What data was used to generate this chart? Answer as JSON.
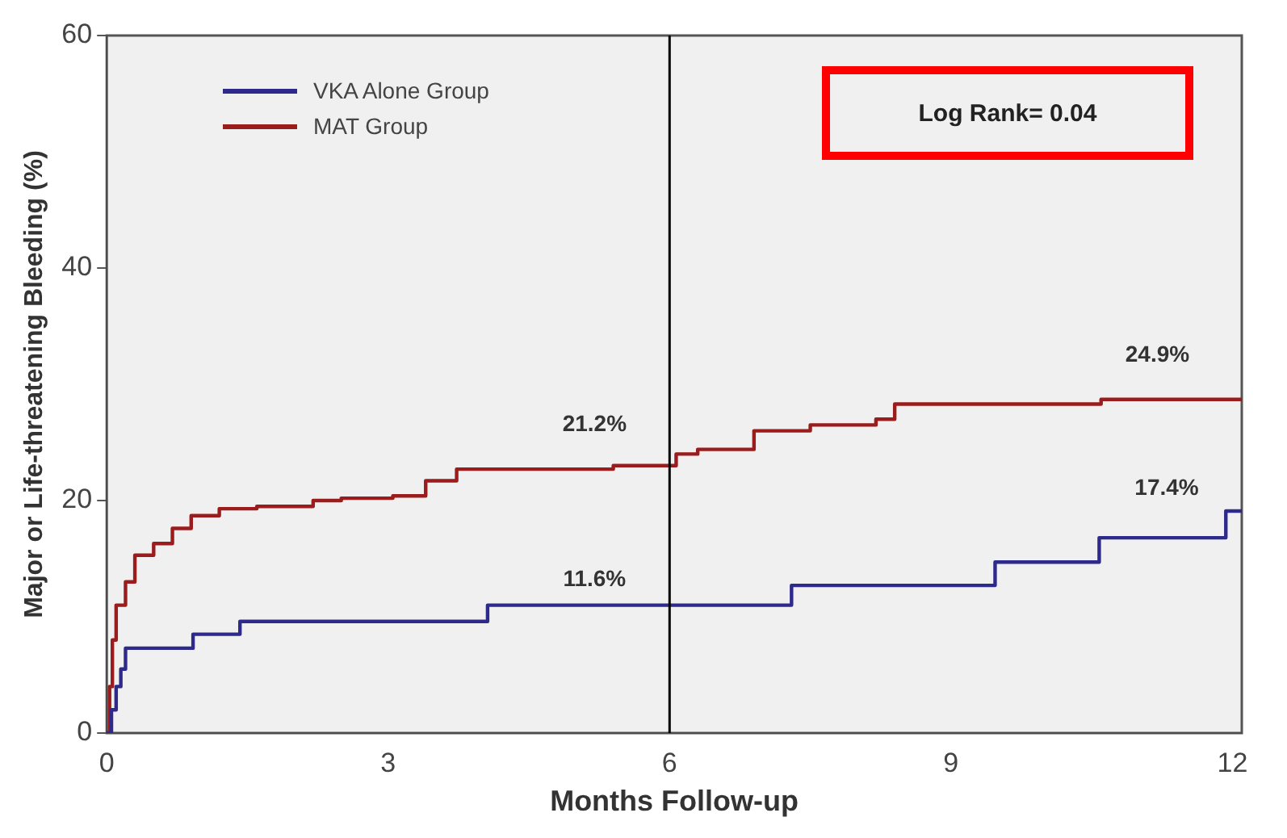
{
  "chart_data": {
    "type": "step",
    "xlabel": "Months Follow-up",
    "ylabel": "Major or Life-threatening Bleeding (%)",
    "xlim": [
      0,
      12.1
    ],
    "xticks": [
      0,
      3,
      6,
      9,
      12
    ],
    "ylim": [
      0,
      60
    ],
    "yticks": [
      0,
      20,
      40,
      60
    ],
    "grid": false,
    "legend": "top left",
    "series": [
      {
        "name": "VKA Alone Group",
        "color": "#2e2a8c",
        "x": [
          0,
          0.05,
          0.1,
          0.15,
          0.2,
          0.92,
          1.42,
          4.06,
          7.3,
          9.47,
          10.58,
          11.93,
          12.1
        ],
        "values": [
          0,
          2,
          4,
          5.5,
          7.3,
          8.5,
          9.6,
          11,
          12.7,
          14.7,
          16.8,
          19.1,
          19.1
        ]
      },
      {
        "name": "MAT Group",
        "color": "#9b1c1c",
        "x": [
          0,
          0.03,
          0.06,
          0.1,
          0.2,
          0.3,
          0.5,
          0.7,
          0.9,
          1.2,
          1.6,
          2.2,
          2.5,
          3.05,
          3.4,
          3.73,
          4,
          5,
          5.4,
          6.07,
          6.3,
          6.9,
          7.5,
          8.2,
          8.4,
          10.6,
          12.1
        ],
        "values": [
          0,
          4,
          8,
          11,
          13,
          15.3,
          16.3,
          17.6,
          18.7,
          19.3,
          19.5,
          20,
          20.2,
          20.4,
          21.7,
          22.7,
          22.7,
          22.7,
          23,
          24,
          24.4,
          26,
          26.5,
          27,
          28.3,
          28.7,
          28.7
        ]
      }
    ],
    "ref_lines": [
      {
        "axis": "x",
        "value": 6,
        "color": "#000000"
      }
    ],
    "annotations": [
      "21.2%",
      "11.6%",
      "24.9%",
      "17.4%",
      "Log Rank= 0.04"
    ]
  }
}
